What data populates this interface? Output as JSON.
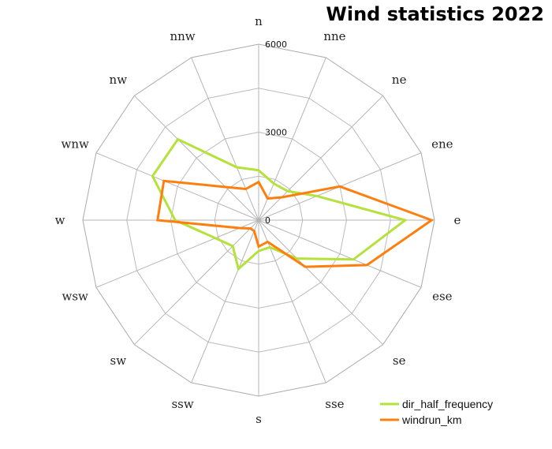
{
  "chart_data": {
    "type": "radar",
    "title": "Wind statistics 2022",
    "directions": [
      "n",
      "nne",
      "ne",
      "ene",
      "e",
      "ese",
      "se",
      "sse",
      "s",
      "ssw",
      "sw",
      "wsw",
      "w",
      "wnw",
      "nw",
      "nnw"
    ],
    "tick_labels": [
      "0",
      "3000",
      "6000"
    ],
    "rlim": [
      0,
      6000
    ],
    "grid": true,
    "legend_position": "bottom-right",
    "series": [
      {
        "name": "dir_half_frequency",
        "color": "#b5e13b",
        "values": [
          1700,
          1350,
          1400,
          2150,
          5000,
          3500,
          1850,
          1000,
          1050,
          1800,
          1250,
          1600,
          2850,
          3920,
          3900,
          1950
        ]
      },
      {
        "name": "windrun_km",
        "color": "#ff7f0e",
        "values": [
          1300,
          800,
          1100,
          3000,
          5900,
          4000,
          2250,
          800,
          900,
          400,
          400,
          700,
          3450,
          3500,
          1600,
          1150
        ]
      }
    ]
  }
}
